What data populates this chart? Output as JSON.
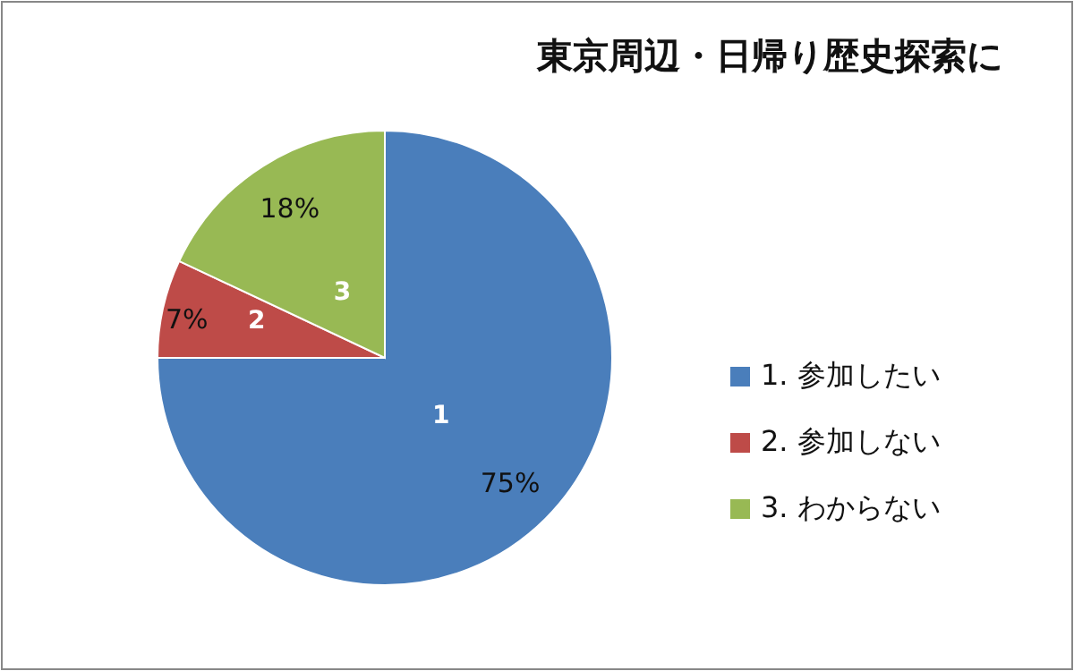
{
  "chart_data": {
    "type": "pie",
    "title": "東京周辺・日帰り歴史探索に",
    "categories": [
      "1. 参加したい",
      "2. 参加しない",
      "3. わからない"
    ],
    "values": [
      75,
      7,
      18
    ],
    "colors": [
      "#4a7ebb",
      "#be4b48",
      "#98b954"
    ],
    "value_labels": [
      "75%",
      "7%",
      "18%"
    ],
    "annotations": [
      "1",
      "2",
      "3"
    ],
    "legend": "right"
  }
}
